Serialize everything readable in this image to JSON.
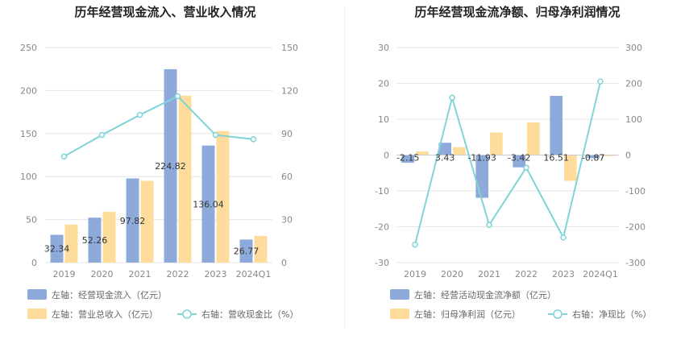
{
  "chart_data": [
    {
      "type": "bar",
      "title": "历年经营现金流入、营业收入情况",
      "categories": [
        "2019",
        "2020",
        "2021",
        "2022",
        "2023",
        "2024Q1"
      ],
      "y_left_ticks": [
        "0",
        "50",
        "100",
        "150",
        "200",
        "250"
      ],
      "y_right_ticks": [
        "0",
        "30",
        "60",
        "90",
        "120",
        "150"
      ],
      "ylim_left": [
        0,
        250
      ],
      "ylim_right": [
        0,
        150
      ],
      "grid": true,
      "legend_position": "bottom-left",
      "series": [
        {
          "name": "左轴：经营现金流入（亿元）",
          "kind": "bar",
          "axis": "left",
          "color": "#8eaadb",
          "values": [
            32.34,
            52.26,
            97.82,
            224.82,
            136.04,
            26.77
          ],
          "labels": [
            "32.34",
            "52.26",
            "97.82",
            "224.82",
            "136.04",
            "26.77"
          ]
        },
        {
          "name": "左轴：营业总收入（亿元）",
          "kind": "bar",
          "axis": "left",
          "color": "#ffdc9c",
          "values": [
            44,
            59,
            95,
            194,
            153,
            31
          ]
        },
        {
          "name": "右轴：营收现金比（%）",
          "kind": "line",
          "axis": "right",
          "color": "#7fd4d6",
          "values": [
            74,
            89,
            103,
            116,
            89,
            86
          ]
        }
      ]
    },
    {
      "type": "bar",
      "title": "历年经营现金流净额、归母净利润情况",
      "categories": [
        "2019",
        "2020",
        "2021",
        "2022",
        "2023",
        "2024Q1"
      ],
      "y_left_ticks": [
        "-30",
        "-20",
        "-10",
        "0",
        "10",
        "20",
        "30"
      ],
      "y_right_ticks": [
        "-300",
        "-200",
        "-100",
        "0",
        "100",
        "200",
        "300"
      ],
      "ylim_left": [
        -30,
        30
      ],
      "ylim_right": [
        -300,
        300
      ],
      "grid": true,
      "legend_position": "bottom-left",
      "series": [
        {
          "name": "左轴：经营活动现金流净额（亿元）",
          "kind": "bar",
          "axis": "left",
          "color": "#8eaadb",
          "values": [
            -2.15,
            3.43,
            -11.93,
            -3.42,
            16.51,
            -0.87
          ],
          "labels": [
            "-2.15",
            "3.43",
            "-11.93",
            "-3.42",
            "16.51",
            "-0.87"
          ]
        },
        {
          "name": "左轴：归母净利润（亿元）",
          "kind": "bar",
          "axis": "left",
          "color": "#ffdc9c",
          "values": [
            1.0,
            2.2,
            6.3,
            9.1,
            -7.2,
            -0.3
          ]
        },
        {
          "name": "右轴：净现比（%）",
          "kind": "line",
          "axis": "right",
          "color": "#7fd4d6",
          "values": [
            -250,
            160,
            -195,
            -35,
            -230,
            205
          ]
        }
      ]
    }
  ]
}
